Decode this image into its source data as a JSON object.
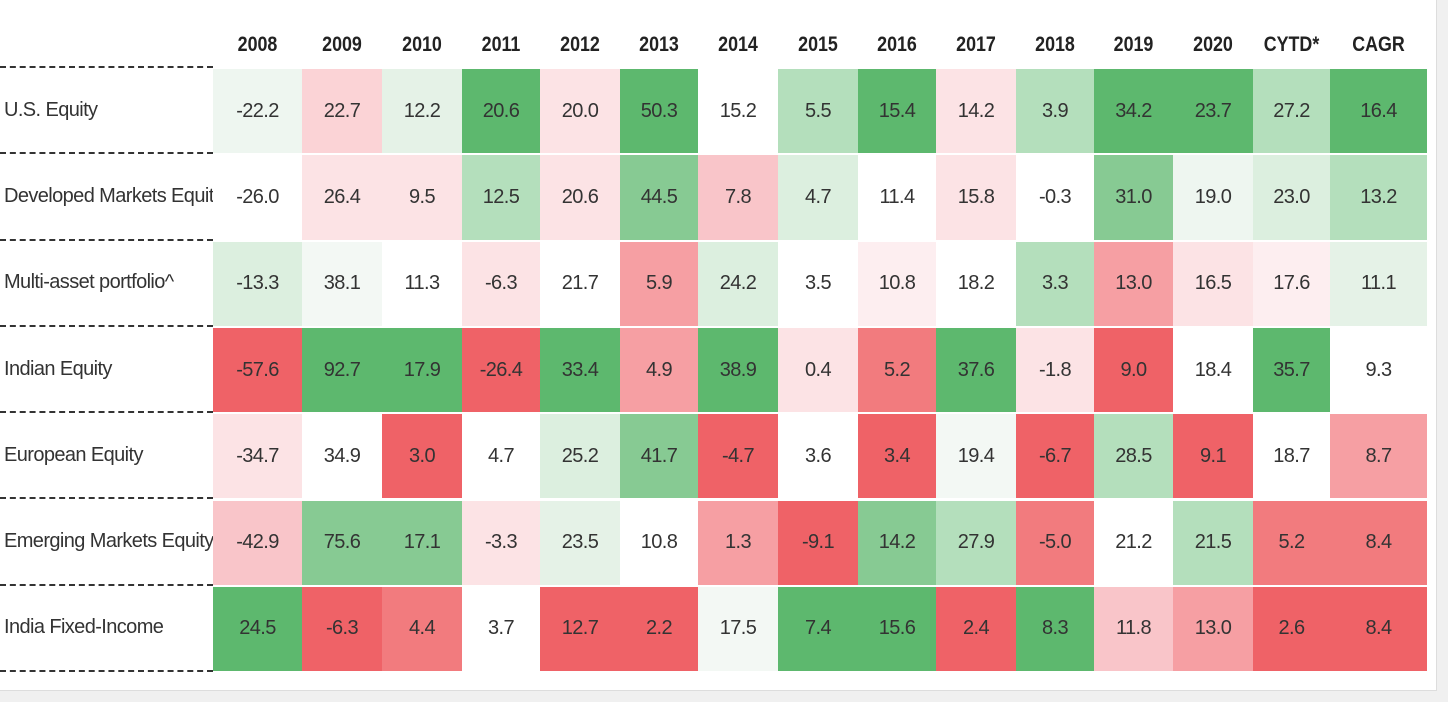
{
  "table": {
    "columns": [
      "2008",
      "2009",
      "2010",
      "2011",
      "2012",
      "2013",
      "2014",
      "2015",
      "2016",
      "2017",
      "2018",
      "2019",
      "2020",
      "CYTD*",
      "CAGR"
    ],
    "rows": [
      {
        "label": "U.S. Equity",
        "cells": [
          "-22.2",
          "22.7",
          "12.2",
          "20.6",
          "20.0",
          "50.3",
          "15.2",
          "5.5",
          "15.4",
          "14.2",
          "3.9",
          "34.2",
          "23.7",
          "27.2",
          "16.4"
        ],
        "colors": [
          "#eef6f0",
          "#fbd3d6",
          "#e5f2e7",
          "#5db86e",
          "#fce3e5",
          "#5db86e",
          "#ffffff",
          "#b4dfbc",
          "#5db86e",
          "#fce3e5",
          "#b4dfbc",
          "#5db86e",
          "#5db86e",
          "#b4dfbc",
          "#5db86e"
        ]
      },
      {
        "label": "Developed Markets Equity",
        "cells": [
          "-26.0",
          "26.4",
          "9.5",
          "12.5",
          "20.6",
          "44.5",
          "7.8",
          "4.7",
          "11.4",
          "15.8",
          "-0.3",
          "31.0",
          "19.0",
          "23.0",
          "13.2"
        ],
        "colors": [
          "#ffffff",
          "#fce3e5",
          "#fce3e5",
          "#b4dfbc",
          "#fce3e5",
          "#87ca93",
          "#f9c5c9",
          "#dcefdf",
          "#ffffff",
          "#fce3e5",
          "#ffffff",
          "#87ca93",
          "#eef6f0",
          "#dcefdf",
          "#b4dfbc"
        ]
      },
      {
        "label": "Multi-asset portfolio^",
        "cells": [
          "-13.3",
          "38.1",
          "11.3",
          "-6.3",
          "21.7",
          "5.9",
          "24.2",
          "3.5",
          "10.8",
          "18.2",
          "3.3",
          "13.0",
          "16.5",
          "17.6",
          "11.1"
        ],
        "colors": [
          "#dcefdf",
          "#f3f8f4",
          "#ffffff",
          "#fce3e5",
          "#ffffff",
          "#f69fa3",
          "#dcefdf",
          "#ffffff",
          "#fdeef0",
          "#ffffff",
          "#b4dfbc",
          "#f69fa3",
          "#fce3e5",
          "#fdeef0",
          "#e5f2e7"
        ]
      },
      {
        "label": "Indian Equity",
        "cells": [
          "-57.6",
          "92.7",
          "17.9",
          "-26.4",
          "33.4",
          "4.9",
          "38.9",
          "0.4",
          "5.2",
          "37.6",
          "-1.8",
          "9.0",
          "18.4",
          "35.7",
          "9.3"
        ],
        "colors": [
          "#ef6267",
          "#5db86e",
          "#5db86e",
          "#ef6267",
          "#5db86e",
          "#f69fa3",
          "#5db86e",
          "#fce3e5",
          "#f27b7e",
          "#5db86e",
          "#fce3e5",
          "#ef6267",
          "#ffffff",
          "#5db86e",
          "#ffffff"
        ]
      },
      {
        "label": "European Equity",
        "cells": [
          "-34.7",
          "34.9",
          "3.0",
          "4.7",
          "25.2",
          "41.7",
          "-4.7",
          "3.6",
          "3.4",
          "19.4",
          "-6.7",
          "28.5",
          "9.1",
          "18.7",
          "8.7"
        ],
        "colors": [
          "#fce3e5",
          "#ffffff",
          "#ef6267",
          "#ffffff",
          "#dcefdf",
          "#87ca93",
          "#ef6267",
          "#ffffff",
          "#ef6267",
          "#f3f8f4",
          "#ef6267",
          "#b4dfbc",
          "#ef6267",
          "#ffffff",
          "#f69fa3"
        ]
      },
      {
        "label": "Emerging Markets Equity",
        "cells": [
          "-42.9",
          "75.6",
          "17.1",
          "-3.3",
          "23.5",
          "10.8",
          "1.3",
          "-9.1",
          "14.2",
          "27.9",
          "-5.0",
          "21.2",
          "21.5",
          "5.2",
          "8.4"
        ],
        "colors": [
          "#f9c5c9",
          "#87ca93",
          "#87ca93",
          "#fce3e5",
          "#e5f2e7",
          "#ffffff",
          "#f69fa3",
          "#ef6267",
          "#87ca93",
          "#b4dfbc",
          "#f27b7e",
          "#ffffff",
          "#b4dfbc",
          "#f27b7e",
          "#f27b7e"
        ]
      },
      {
        "label": "India Fixed-Income",
        "cells": [
          "24.5",
          "-6.3",
          "4.4",
          "3.7",
          "12.7",
          "2.2",
          "17.5",
          "7.4",
          "15.6",
          "2.4",
          "8.3",
          "11.8",
          "13.0",
          "2.6",
          "8.4"
        ],
        "colors": [
          "#5db86e",
          "#ef6267",
          "#f27b7e",
          "#ffffff",
          "#ef6267",
          "#ef6267",
          "#f3f8f4",
          "#5db86e",
          "#5db86e",
          "#ef6267",
          "#5db86e",
          "#f9c5c9",
          "#f69fa3",
          "#ef6267",
          "#ef6267"
        ]
      }
    ]
  }
}
